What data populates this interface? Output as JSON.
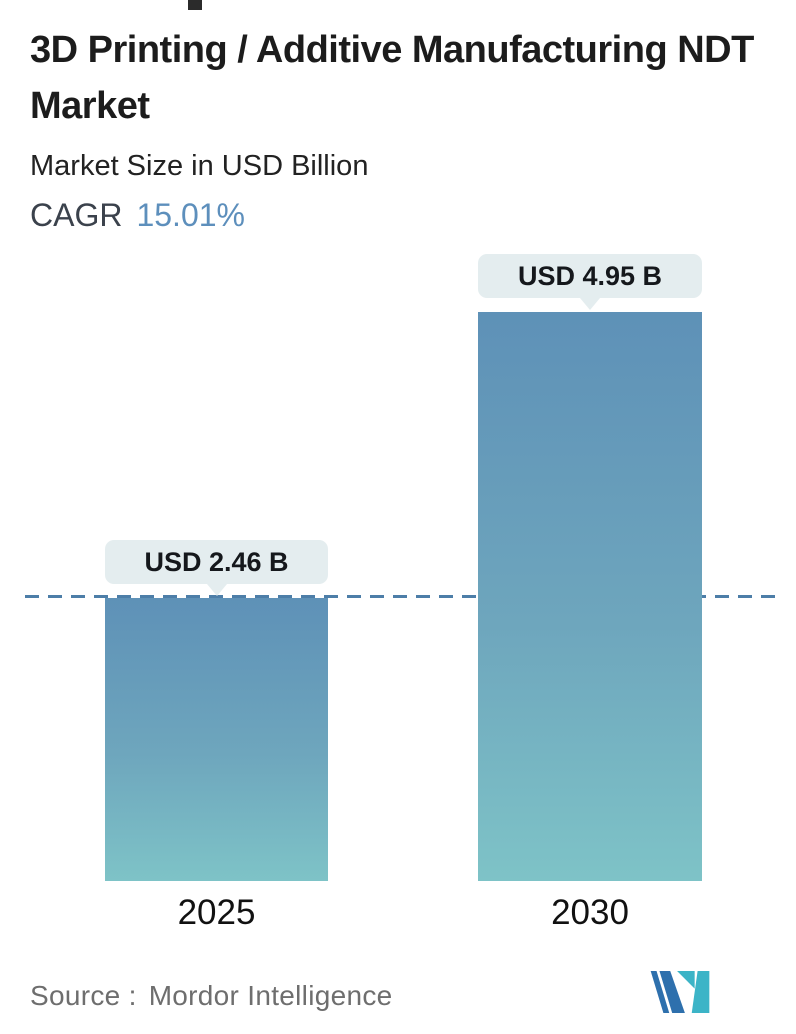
{
  "header": {
    "title": "3D Printing / Additive Manufacturing NDT Market",
    "subtitle": "Market Size in USD Billion",
    "cagr_label": "CAGR",
    "cagr_value": "15.01%"
  },
  "chart_data": {
    "type": "bar",
    "title": "3D Printing / Additive Manufacturing NDT Market",
    "subtitle": "Market Size in USD Billion",
    "unit": "USD Billion",
    "cagr_percent": 15.01,
    "categories": [
      "2025",
      "2030"
    ],
    "values": [
      2.46,
      4.95
    ],
    "value_labels": [
      "USD 2.46 B",
      "USD 4.95 B"
    ],
    "ylim": [
      0,
      4.95
    ],
    "grid": false,
    "legend": false,
    "reference_line": {
      "value": 2.46,
      "style": "dashed",
      "color": "#4d7ea8"
    },
    "bar_gradient_top": "#5e91b7",
    "bar_gradient_bottom": "#7ec3c7",
    "tooltip_bg": "#e4edef"
  },
  "colors": {
    "cagr_accent": "#5d8fbc",
    "text_dark": "#1c1c1c",
    "source_gray": "#6e6e6e",
    "dashed_line": "#4d7ea8",
    "logo_blue": "#2e70ad",
    "logo_teal": "#3cb4c7"
  },
  "footer": {
    "source_label": "Source :",
    "source_value": "Mordor Intelligence",
    "logo_name": "mordor-intelligence-logo"
  }
}
